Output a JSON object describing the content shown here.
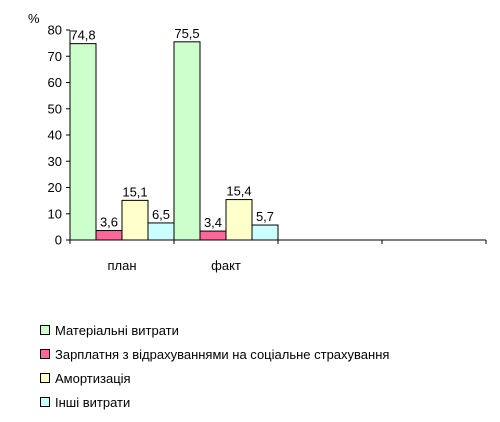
{
  "chart_data": {
    "type": "bar",
    "y_unit_label": "%",
    "categories": [
      "план",
      "факт",
      "",
      ""
    ],
    "ylim": [
      0,
      80
    ],
    "yticks": [
      0,
      10,
      20,
      30,
      40,
      50,
      60,
      70,
      80
    ],
    "grid": false,
    "legend_position": "bottom-left",
    "series": [
      {
        "name": "Матеріальні витрати",
        "color": "#ccffcc",
        "values": [
          74.8,
          75.5,
          null,
          null
        ],
        "labels": [
          "74,8",
          "75,5",
          "",
          ""
        ]
      },
      {
        "name": "Зарплатня з відрахуваннями на соціальне страхування",
        "color": "#ff6699",
        "values": [
          3.6,
          3.4,
          null,
          null
        ],
        "labels": [
          "3,6",
          "3,4",
          "",
          ""
        ]
      },
      {
        "name": "Амортизація",
        "color": "#ffffcc",
        "values": [
          15.1,
          15.4,
          null,
          null
        ],
        "labels": [
          "15,1",
          "15,4",
          "",
          ""
        ]
      },
      {
        "name": "Інші витрати",
        "color": "#ccffff",
        "values": [
          6.5,
          5.7,
          null,
          null
        ],
        "labels": [
          "6,5",
          "5,7",
          "",
          ""
        ]
      }
    ]
  }
}
